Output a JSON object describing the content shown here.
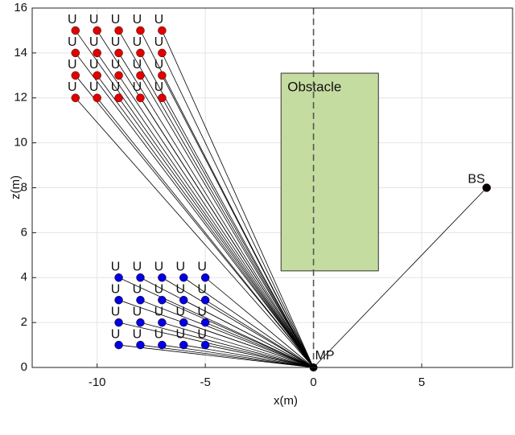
{
  "chart_data": {
    "type": "scatter",
    "xlabel": "x(m)",
    "ylabel": "z(m)",
    "xlim": [
      -13,
      9.2
    ],
    "ylim": [
      0,
      16
    ],
    "xticks": [
      -10,
      -5,
      0,
      5
    ],
    "yticks": [
      0,
      2,
      4,
      6,
      8,
      10,
      12,
      14,
      16
    ],
    "vline": {
      "x": 0,
      "color": "#555555"
    },
    "hub": {
      "label": "MP",
      "x": 0,
      "y": 0,
      "color": "#000000"
    },
    "obstacle": {
      "text": "Obstacle",
      "x0": -1.5,
      "x1": 3,
      "y0": 4.3,
      "y1": 13.1,
      "color": "#c5dca0"
    },
    "series": [
      {
        "color": "#e00000",
        "point_label": "U",
        "x": [
          -11,
          -10,
          -9,
          -8,
          -7,
          -11,
          -10,
          -9,
          -8,
          -7,
          -11,
          -10,
          -9,
          -8,
          -7,
          -11,
          -10,
          -9,
          -8,
          -7
        ],
        "values": [
          15,
          15,
          15,
          15,
          15,
          14,
          14,
          14,
          14,
          14,
          13,
          13,
          13,
          13,
          13,
          12,
          12,
          12,
          12,
          12
        ]
      },
      {
        "color": "#0000e0",
        "point_label": "U",
        "x": [
          -9,
          -8,
          -7,
          -6,
          -5,
          -9,
          -8,
          -7,
          -6,
          -5,
          -9,
          -8,
          -7,
          -6,
          -5,
          -9,
          -8,
          -7,
          -6,
          -5
        ],
        "values": [
          4,
          4,
          4,
          4,
          4,
          3,
          3,
          3,
          3,
          3,
          2,
          2,
          2,
          2,
          2,
          1,
          1,
          1,
          1,
          1
        ]
      },
      {
        "color": "#000000",
        "point_label": "BS",
        "x": [
          8
        ],
        "values": [
          8
        ]
      }
    ]
  }
}
